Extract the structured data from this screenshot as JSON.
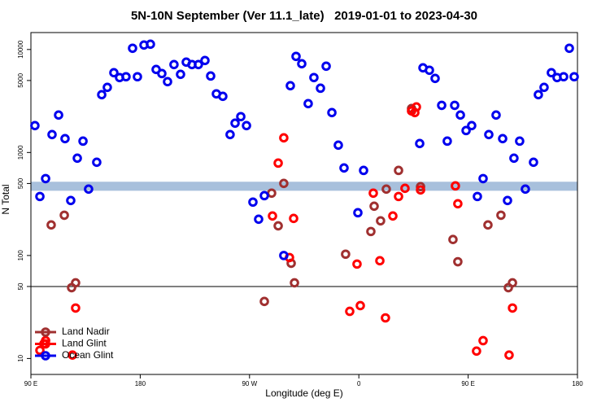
{
  "chart_data": {
    "type": "scatter",
    "title": "5N-10N September (Ver 11.1_late)   2019-01-01 to 2023-04-30",
    "xlabel": "Longitude (deg E)",
    "ylabel": "N Total",
    "xlim": [
      90,
      540
    ],
    "xticks": [
      {
        "value": 90,
        "label": "90 E"
      },
      {
        "value": 180,
        "label": "180"
      },
      {
        "value": 270,
        "label": "90 W"
      },
      {
        "value": 360,
        "label": "0"
      },
      {
        "value": 450,
        "label": "90 E"
      },
      {
        "value": 540,
        "label": "180"
      }
    ],
    "ylim": [
      7,
      14600
    ],
    "yticks": [
      10,
      50,
      100,
      500,
      1000,
      5000,
      10000
    ],
    "log_y": true,
    "hline": 50,
    "band": {
      "range": [
        425,
        520
      ],
      "color": "#a8c0dc"
    },
    "legend": "bottom-left",
    "series": [
      {
        "name": "Land Nadir",
        "color": "#a03030",
        "x": [
          106.7,
          117.5,
          123.5,
          126.8,
          282.2,
          288.2,
          293.6,
          298.2,
          304.3,
          307.0,
          349.1,
          369.9,
          372.6,
          377.9,
          382.6,
          392.7,
          403.4,
          410.8,
          437.5,
          441.5,
          466.3,
          477.0,
          483.1,
          486.5
        ],
        "values": [
          198,
          246,
          48.7,
          54.3,
          35.8,
          403,
          194,
          501,
          84,
          54.3,
          103,
          171,
          301,
          217,
          441,
          670,
          2670,
          466,
          143,
          87,
          198,
          246,
          48.7,
          54.3
        ]
      },
      {
        "name": "Land Glint",
        "color": "#ff0000",
        "x": [
          97.4,
          100.7,
          102.1,
          124.2,
          126.8,
          288.9,
          293.6,
          298.2,
          302.9,
          306.3,
          352.5,
          358.5,
          361.2,
          371.9,
          377.3,
          381.9,
          388.0,
          392.7,
          398.0,
          403.4,
          407.4,
          406.1,
          410.8,
          439.5,
          441.5,
          456.9,
          462.3,
          483.7,
          486.5
        ],
        "values": [
          12.0,
          13.9,
          14.9,
          10.8,
          30.9,
          242,
          789,
          1388,
          95.5,
          229,
          28.7,
          82.6,
          32.6,
          403,
          88.9,
          24.8,
          242,
          374,
          449,
          2530,
          2770,
          2440,
          433,
          474,
          318,
          11.8,
          14.9,
          10.8,
          30.9
        ]
      },
      {
        "name": "Ocean Glint",
        "color": "#0000ee",
        "x": [
          93.3,
          97.4,
          102.1,
          107.4,
          112.8,
          118.1,
          122.8,
          128.2,
          132.9,
          137.5,
          144.2,
          148.3,
          152.9,
          158.3,
          163.0,
          168.3,
          173.7,
          177.7,
          183.1,
          188.4,
          193.1,
          197.8,
          202.5,
          207.8,
          213.2,
          217.9,
          222.6,
          227.9,
          233.3,
          238.0,
          242.7,
          248.0,
          254.0,
          258.1,
          262.8,
          267.5,
          272.8,
          277.5,
          282.2,
          298.2,
          303.6,
          308.3,
          313.0,
          318.3,
          323.0,
          328.4,
          333.1,
          337.8,
          343.1,
          347.8,
          359.2,
          363.9,
          410.1,
          412.8,
          418.1,
          422.8,
          428.2,
          432.8,
          438.9,
          443.6,
          448.3,
          452.9,
          457.6,
          462.3,
          467.0,
          473.0,
          478.4,
          482.4,
          487.7,
          492.4,
          497.1,
          503.8,
          507.8,
          512.5,
          518.5,
          523.2,
          528.6,
          533.3,
          537.3
        ],
        "values": [
          1824,
          374,
          558,
          1493,
          2310,
          1363,
          342,
          881,
          1290,
          441,
          804,
          3640,
          4290,
          5950,
          5340,
          5440,
          10280,
          5440,
          11050,
          11250,
          6400,
          5840,
          4870,
          7140,
          5740,
          7540,
          7140,
          7140,
          7820,
          5530,
          3710,
          3510,
          1493,
          1926,
          2230,
          1824,
          330,
          225,
          381,
          100,
          4450,
          8570,
          7270,
          2980,
          5340,
          4210,
          6890,
          2440,
          1178,
          708,
          260,
          670,
          1222,
          6640,
          6290,
          5240,
          2870,
          1290,
          2870,
          2310,
          1634,
          1824,
          374,
          558,
          1493,
          2310,
          1363,
          342,
          881,
          1290,
          441,
          804,
          3640,
          4290,
          5950,
          5340,
          5440,
          10280,
          5440
        ]
      }
    ]
  }
}
